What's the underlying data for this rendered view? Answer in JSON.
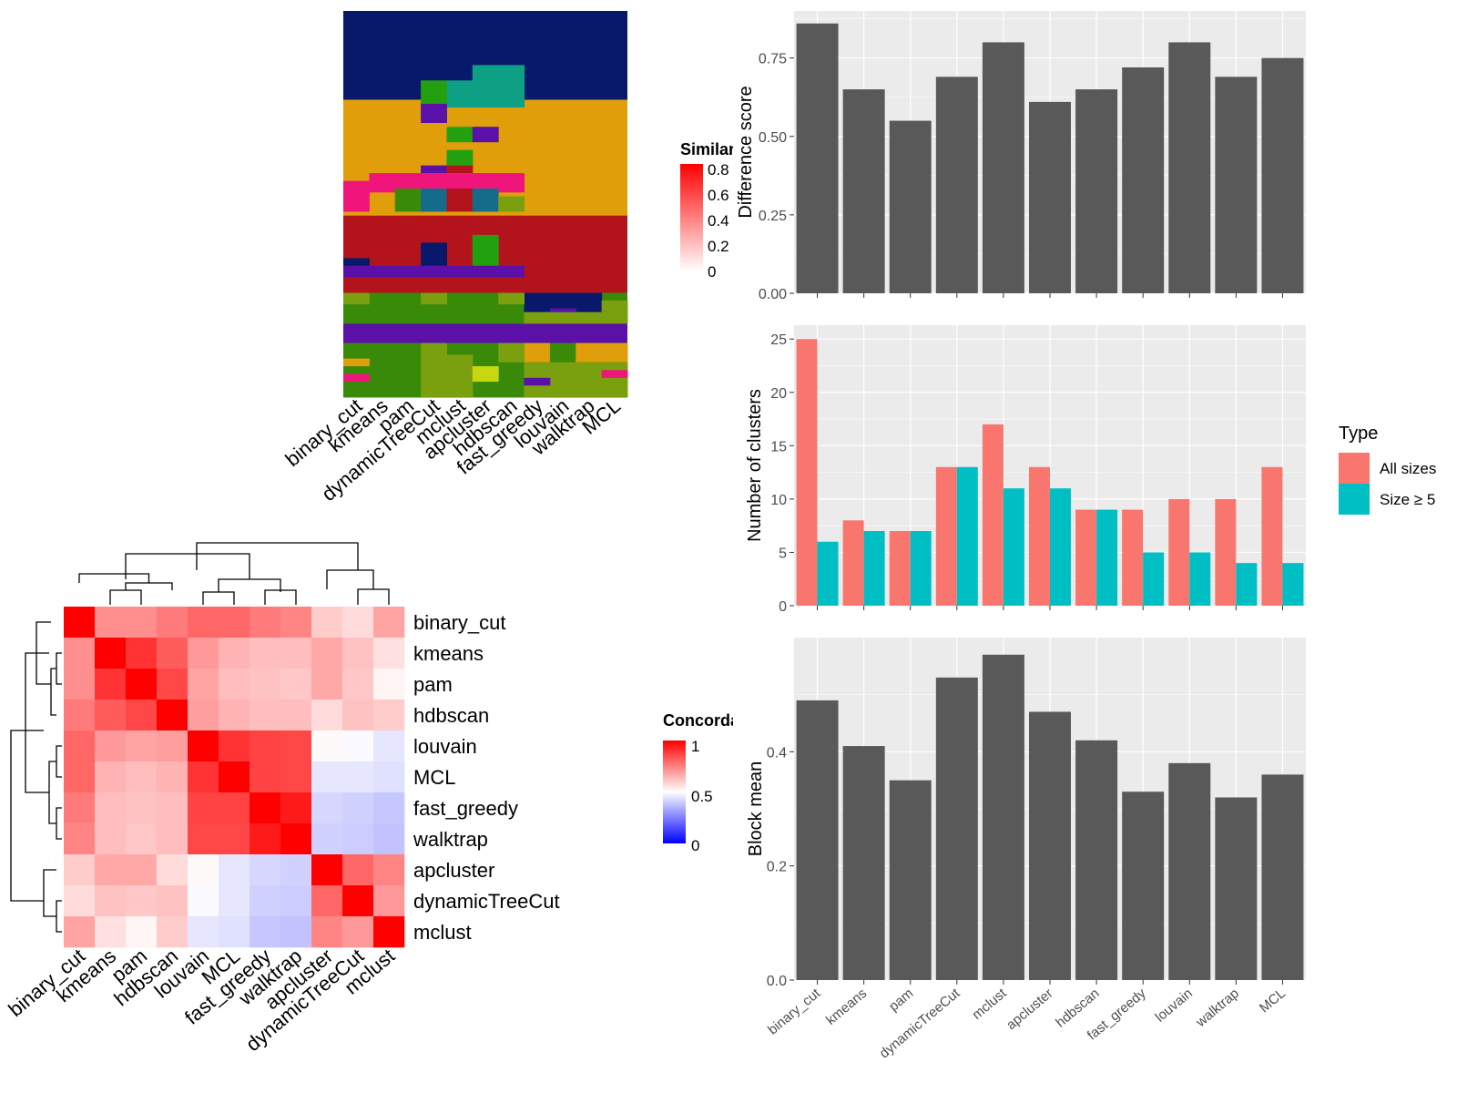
{
  "colors": {
    "panel_bg": "#ebebeb",
    "grid": "#ffffff",
    "bar": "#595959",
    "all_sizes": "#F8766D",
    "size_ge5": "#00BFC4",
    "heat_high": "#ff0000",
    "heat_mid": "#ffffff",
    "heat_low": "#0000ff"
  },
  "similarity_legend": {
    "title": "Similarity",
    "ticks": [
      "0.8",
      "0.6",
      "0.4",
      "0.2",
      "0"
    ]
  },
  "concordance_legend": {
    "title": "Concordance",
    "ticks": [
      "1",
      "0.5",
      "0"
    ]
  },
  "membership_methods": [
    "binary_cut",
    "kmeans",
    "pam",
    "dynamicTreeCut",
    "mclust",
    "apcluster",
    "hdbscan",
    "fast_greedy",
    "louvain",
    "walktrap",
    "MCL"
  ],
  "concordance": {
    "order": [
      "binary_cut",
      "kmeans",
      "pam",
      "hdbscan",
      "louvain",
      "MCL",
      "fast_greedy",
      "walktrap",
      "apcluster",
      "dynamicTreeCut",
      "mclust"
    ],
    "matrix": [
      [
        1.0,
        0.72,
        0.72,
        0.76,
        0.8,
        0.8,
        0.76,
        0.74,
        0.6,
        0.57,
        0.68
      ],
      [
        0.72,
        1.0,
        0.9,
        0.82,
        0.7,
        0.65,
        0.63,
        0.63,
        0.67,
        0.62,
        0.56
      ],
      [
        0.72,
        0.9,
        1.0,
        0.86,
        0.68,
        0.63,
        0.62,
        0.61,
        0.67,
        0.61,
        0.52
      ],
      [
        0.76,
        0.82,
        0.86,
        1.0,
        0.69,
        0.65,
        0.63,
        0.63,
        0.57,
        0.62,
        0.6
      ],
      [
        0.8,
        0.7,
        0.68,
        0.69,
        1.0,
        0.9,
        0.87,
        0.86,
        0.51,
        0.49,
        0.45
      ],
      [
        0.8,
        0.65,
        0.63,
        0.65,
        0.9,
        1.0,
        0.87,
        0.86,
        0.45,
        0.45,
        0.44
      ],
      [
        0.76,
        0.63,
        0.62,
        0.63,
        0.87,
        0.87,
        1.0,
        0.95,
        0.42,
        0.41,
        0.39
      ],
      [
        0.74,
        0.63,
        0.61,
        0.63,
        0.86,
        0.86,
        0.95,
        1.0,
        0.41,
        0.4,
        0.38
      ],
      [
        0.6,
        0.67,
        0.67,
        0.57,
        0.51,
        0.45,
        0.42,
        0.41,
        1.0,
        0.8,
        0.74
      ],
      [
        0.57,
        0.62,
        0.61,
        0.62,
        0.49,
        0.45,
        0.41,
        0.4,
        0.8,
        1.0,
        0.7
      ],
      [
        0.68,
        0.56,
        0.52,
        0.6,
        0.45,
        0.44,
        0.39,
        0.38,
        0.74,
        0.7,
        1.0
      ]
    ]
  },
  "chart_data": [
    {
      "type": "bar",
      "categories": [
        "binary_cut",
        "kmeans",
        "pam",
        "dynamicTreeCut",
        "mclust",
        "apcluster",
        "hdbscan",
        "fast_greedy",
        "louvain",
        "walktrap",
        "MCL"
      ],
      "values": [
        0.86,
        0.65,
        0.55,
        0.69,
        0.8,
        0.61,
        0.65,
        0.72,
        0.8,
        0.69,
        0.75
      ],
      "ylabel": "Difference score",
      "yticks": [
        "0.00",
        "0.25",
        "0.50",
        "0.75"
      ],
      "ylim": [
        0,
        0.9
      ]
    },
    {
      "type": "bar",
      "categories": [
        "binary_cut",
        "kmeans",
        "pam",
        "dynamicTreeCut",
        "mclust",
        "apcluster",
        "hdbscan",
        "fast_greedy",
        "louvain",
        "walktrap",
        "MCL"
      ],
      "series": [
        {
          "name": "All sizes",
          "values": [
            25,
            8,
            7,
            13,
            17,
            13,
            9,
            9,
            10,
            10,
            13
          ]
        },
        {
          "name": "Size ≥ 5",
          "values": [
            6,
            7,
            7,
            13,
            11,
            11,
            9,
            5,
            5,
            4,
            4
          ]
        }
      ],
      "ylabel": "Number of clusters",
      "yticks": [
        "0",
        "5",
        "10",
        "15",
        "20",
        "25"
      ],
      "ylim": [
        0,
        26.3
      ],
      "legend_title": "Type",
      "legend_position": "right"
    },
    {
      "type": "bar",
      "categories": [
        "binary_cut",
        "kmeans",
        "pam",
        "dynamicTreeCut",
        "mclust",
        "apcluster",
        "hdbscan",
        "fast_greedy",
        "louvain",
        "walktrap",
        "MCL"
      ],
      "values": [
        0.49,
        0.41,
        0.35,
        0.53,
        0.57,
        0.47,
        0.42,
        0.33,
        0.38,
        0.32,
        0.36
      ],
      "ylabel": "Block mean",
      "yticks": [
        "0.0",
        "0.2",
        "0.4"
      ],
      "ylim": [
        0,
        0.6
      ]
    }
  ]
}
